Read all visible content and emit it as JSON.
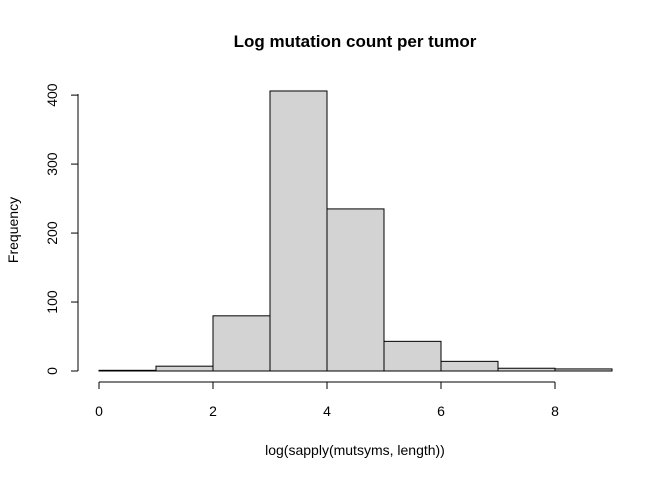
{
  "chart_data": {
    "type": "bar",
    "title": "Log mutation count per tumor",
    "xlabel": "log(sapply(mutsyms, length))",
    "ylabel": "Frequency",
    "bins": [
      {
        "x0": 0,
        "x1": 1,
        "count": 1
      },
      {
        "x0": 1,
        "x1": 2,
        "count": 7
      },
      {
        "x0": 2,
        "x1": 3,
        "count": 80
      },
      {
        "x0": 3,
        "x1": 4,
        "count": 406
      },
      {
        "x0": 4,
        "x1": 5,
        "count": 235
      },
      {
        "x0": 5,
        "x1": 6,
        "count": 43
      },
      {
        "x0": 6,
        "x1": 7,
        "count": 14
      },
      {
        "x0": 7,
        "x1": 8,
        "count": 4
      },
      {
        "x0": 8,
        "x1": 9,
        "count": 3
      }
    ],
    "xlim": [
      0,
      9
    ],
    "ylim": [
      0,
      406
    ],
    "xticks": [
      "0",
      "2",
      "4",
      "6",
      "8"
    ],
    "yticks": [
      "0",
      "100",
      "200",
      "300",
      "400"
    ],
    "grid": false,
    "colors": {
      "bar_fill": "#d3d3d3",
      "bar_stroke": "#000000"
    }
  }
}
